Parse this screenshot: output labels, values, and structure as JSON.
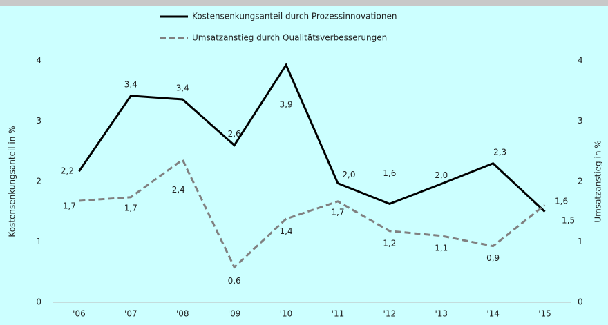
{
  "chart_data": {
    "type": "line",
    "categories": [
      "'06",
      "'07",
      "'08",
      "'09",
      "'10",
      "'11",
      "'12",
      "'13",
      "'14",
      "'15"
    ],
    "series": [
      {
        "name": "Kostensenkungsanteil durch Prozessinnovationen",
        "color": "#000000",
        "dash": false,
        "values": [
          2.17,
          3.42,
          3.36,
          2.6,
          3.93,
          1.97,
          1.63,
          1.96,
          2.3,
          1.5
        ],
        "value_labels": [
          "2,2",
          "3,4",
          "3,4",
          "2,6",
          "3,9",
          "2,0",
          "1,6",
          "2,0",
          "2,3",
          "1,5"
        ]
      },
      {
        "name": "Umsatzanstieg durch Qualitätsverbesserungen",
        "color": "#808080",
        "dash": true,
        "axis": "y2",
        "values": [
          1.68,
          1.74,
          2.36,
          0.58,
          1.38,
          1.67,
          1.18,
          1.1,
          0.93,
          1.61
        ],
        "value_labels": [
          "1,7",
          "1,7",
          "2,4",
          "0,6",
          "1,4",
          "1,7",
          "1,2",
          "1,1",
          "0,9",
          "1,6"
        ]
      }
    ],
    "ylabel": "Kostensenkungsanteil in %",
    "y2label": "Umsatzanstieg in %",
    "ylim": [
      0,
      4
    ],
    "yticks": [
      0,
      1,
      2,
      3,
      4
    ],
    "y2lim": [
      0,
      4
    ],
    "y2ticks": [
      0,
      1,
      2,
      3,
      4
    ],
    "grid": false
  }
}
